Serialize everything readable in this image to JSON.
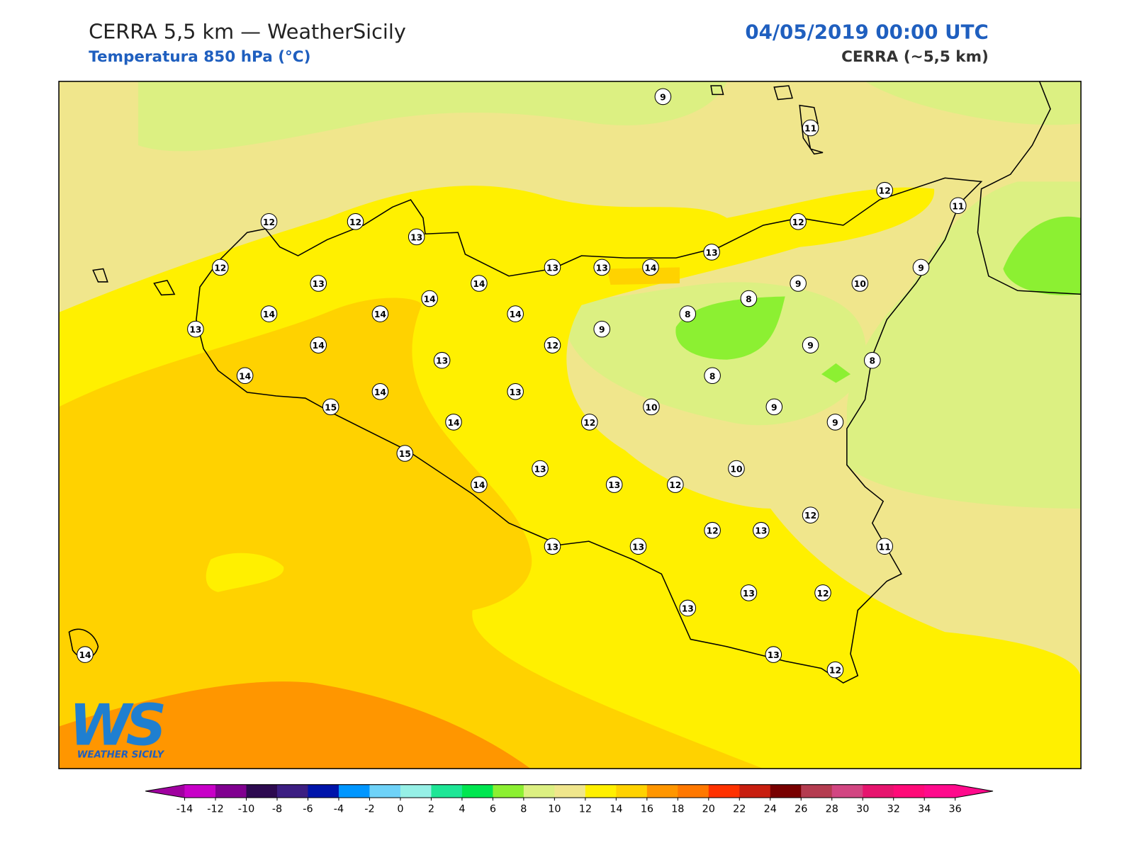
{
  "header": {
    "title": "CERRA 5,5 km — WeatherSicily",
    "subtitle": "Temperatura 850 hPa (°C)",
    "datetime": "04/05/2019 00:00 UTC",
    "model": "CERRA (~5,5 km)"
  },
  "map": {
    "station_values": [
      9,
      11,
      12,
      11,
      12,
      12,
      13,
      12,
      12,
      13,
      14,
      13,
      13,
      14,
      13,
      9,
      10,
      9,
      8,
      8,
      14,
      14,
      14,
      14,
      13,
      14,
      12,
      9,
      9,
      14,
      13,
      8,
      8,
      14,
      13,
      15,
      14,
      12,
      10,
      9,
      9,
      15,
      13,
      10,
      14,
      13,
      12,
      12,
      12,
      13,
      13,
      13,
      11,
      13,
      12,
      13,
      13,
      12,
      14
    ]
  },
  "colorbar": {
    "ticks": [
      -14,
      -12,
      -10,
      -8,
      -6,
      -4,
      -2,
      0,
      2,
      4,
      6,
      8,
      10,
      12,
      14,
      16,
      18,
      20,
      22,
      24,
      26,
      28,
      30,
      32,
      34,
      36
    ],
    "extend": "both",
    "colors": [
      "#a000a0",
      "#c800c8",
      "#800090",
      "#2d0a50",
      "#3c1e82",
      "#0014aa",
      "#0096ff",
      "#6ed2f8",
      "#96f0e6",
      "#1ee696",
      "#00e650",
      "#8cf032",
      "#dcf082",
      "#f0e68c",
      "#fff000",
      "#ffd200",
      "#ff9600",
      "#ff7800",
      "#ff3200",
      "#c81e0f",
      "#780000",
      "#b43c50",
      "#d24682",
      "#e6146e",
      "#ff0a78",
      "#ff0a8c",
      "#ff0a8c"
    ]
  },
  "logo": {
    "letters": "WS",
    "name": "WEATHER SICILY"
  }
}
